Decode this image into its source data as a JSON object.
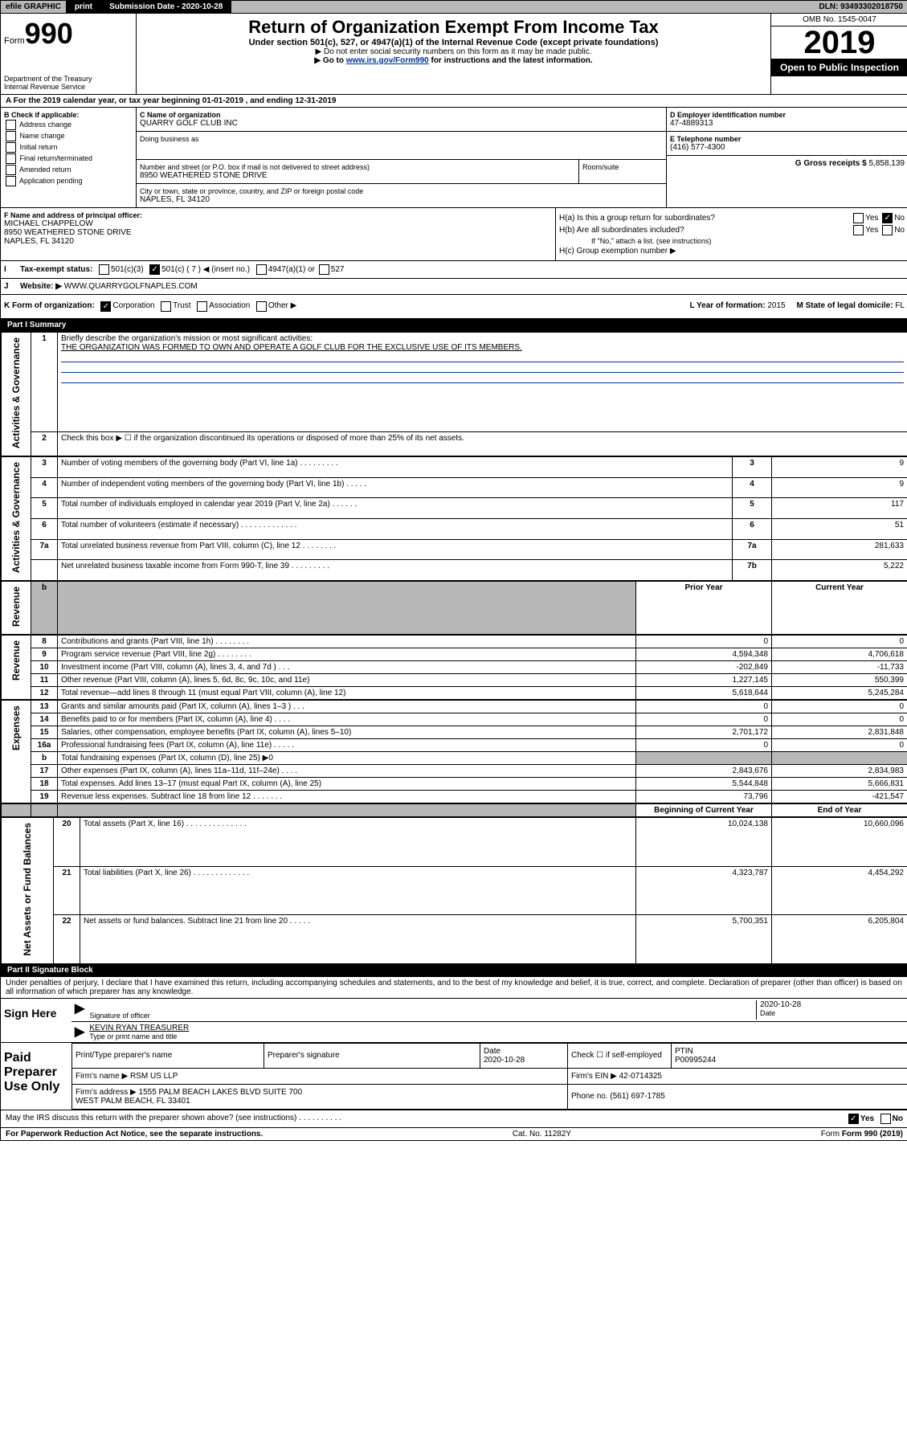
{
  "topbar": {
    "efile": "efile GRAPHIC",
    "print": "print",
    "subdate_lbl": "Submission Date - 2020-10-28",
    "dln": "DLN: 93493302018750"
  },
  "header": {
    "form_lbl": "Form",
    "form_no": "990",
    "dept": "Department of the Treasury",
    "irs": "Internal Revenue Service",
    "title": "Return of Organization Exempt From Income Tax",
    "sub1": "Under section 501(c), 527, or 4947(a)(1) of the Internal Revenue Code (except private foundations)",
    "sub2": "▶ Do not enter social security numbers on this form as it may be made public.",
    "sub3_pre": "▶ Go to ",
    "sub3_link": "www.irs.gov/Form990",
    "sub3_post": " for instructions and the latest information.",
    "omb": "OMB No. 1545-0047",
    "year": "2019",
    "open": "Open to Public Inspection"
  },
  "lineA": "For the 2019 calendar year, or tax year beginning 01-01-2019     , and ending 12-31-2019",
  "B": {
    "lbl": "B Check if applicable:",
    "items": [
      "Address change",
      "Name change",
      "Initial return",
      "Final return/terminated",
      "Amended return",
      "Application pending"
    ]
  },
  "C": {
    "name_lbl": "C Name of organization",
    "name": "QUARRY GOLF CLUB INC",
    "dba_lbl": "Doing business as",
    "addr_lbl": "Number and street (or P.O. box if mail is not delivered to street address)",
    "addr": "8950 WEATHERED STONE DRIVE",
    "room_lbl": "Room/suite",
    "city_lbl": "City or town, state or province, country, and ZIP or foreign postal code",
    "city": "NAPLES, FL  34120"
  },
  "D": {
    "lbl": "D Employer identification number",
    "val": "47-4889313"
  },
  "E": {
    "lbl": "E Telephone number",
    "val": "(416) 577-4300"
  },
  "G": {
    "lbl": "G Gross receipts $",
    "val": "5,858,139"
  },
  "F": {
    "lbl": "F  Name and address of principal officer:",
    "name": "MICHAEL CHAPPELOW",
    "addr": "8950 WEATHERED STONE DRIVE",
    "city": "NAPLES, FL  34120"
  },
  "H": {
    "a": "H(a)  Is this a group return for subordinates?",
    "b": "H(b)  Are all subordinates included?",
    "b2": "If \"No,\" attach a list. (see instructions)",
    "c": "H(c)  Group exemption number ▶"
  },
  "I": {
    "lbl": "Tax-exempt status:",
    "opts": [
      "501(c)(3)",
      "501(c) ( 7 ) ◀ (insert no.)",
      "4947(a)(1) or",
      "527"
    ]
  },
  "J": {
    "lbl": "Website: ▶",
    "val": "WWW.QUARRYGOLFNAPLES.COM"
  },
  "K": {
    "lbl": "K Form of organization:",
    "opts": [
      "Corporation",
      "Trust",
      "Association",
      "Other ▶"
    ]
  },
  "L": {
    "lbl": "L Year of formation:",
    "val": "2015"
  },
  "M": {
    "lbl": "M State of legal domicile:",
    "val": "FL"
  },
  "part1": {
    "hdr": "Part I        Summary",
    "l1": "Briefly describe the organization's mission or most significant activities:",
    "l1v": "THE ORGANIZATION WAS FORMED TO OWN AND OPERATE A GOLF CLUB FOR THE EXCLUSIVE USE OF ITS MEMBERS.",
    "l2": "Check this box ▶ ☐  if the organization discontinued its operations or disposed of more than 25% of its net assets.",
    "rows_ag": [
      {
        "n": "3",
        "d": "Number of voting members of the governing body (Part VI, line 1a)   .    .    .    .    .    .    .    .    .",
        "c": "3",
        "v": "9"
      },
      {
        "n": "4",
        "d": "Number of independent voting members of the governing body (Part VI, line 1b)   .    .    .    .    .",
        "c": "4",
        "v": "9"
      },
      {
        "n": "5",
        "d": "Total number of individuals employed in calendar year 2019 (Part V, line 2a)   .    .    .    .    .    .",
        "c": "5",
        "v": "117"
      },
      {
        "n": "6",
        "d": "Total number of volunteers (estimate if necessary)   .    .    .    .    .    .    .    .    .    .    .    .    .",
        "c": "6",
        "v": "51"
      },
      {
        "n": "7a",
        "d": "Total unrelated business revenue from Part VIII, column (C), line 12   .    .    .    .    .    .    .    .",
        "c": "7a",
        "v": "281,633"
      },
      {
        "n": "",
        "d": "Net unrelated business taxable income from Form 990-T, line 39   .    .    .    .    .    .    .    .    .",
        "c": "7b",
        "v": "5,222"
      }
    ],
    "py": "Prior Year",
    "cy": "Current Year",
    "rev": [
      {
        "n": "8",
        "d": "Contributions and grants (Part VIII, line 1h)   .    .    .    .    .    .    .    .",
        "p": "0",
        "c": "0"
      },
      {
        "n": "9",
        "d": "Program service revenue (Part VIII, line 2g)   .    .    .    .    .    .    .    .",
        "p": "4,594,348",
        "c": "4,706,618"
      },
      {
        "n": "10",
        "d": "Investment income (Part VIII, column (A), lines 3, 4, and 7d )   .    .    .",
        "p": "-202,849",
        "c": "-11,733"
      },
      {
        "n": "11",
        "d": "Other revenue (Part VIII, column (A), lines 5, 6d, 8c, 9c, 10c, and 11e)",
        "p": "1,227,145",
        "c": "550,399"
      },
      {
        "n": "12",
        "d": "Total revenue—add lines 8 through 11 (must equal Part VIII, column (A), line 12)",
        "p": "5,618,644",
        "c": "5,245,284"
      }
    ],
    "exp": [
      {
        "n": "13",
        "d": "Grants and similar amounts paid (Part IX, column (A), lines 1–3 )   .    .    .",
        "p": "0",
        "c": "0"
      },
      {
        "n": "14",
        "d": "Benefits paid to or for members (Part IX, column (A), line 4)   .    .    .    .",
        "p": "0",
        "c": "0"
      },
      {
        "n": "15",
        "d": "Salaries, other compensation, employee benefits (Part IX, column (A), lines 5–10)",
        "p": "2,701,172",
        "c": "2,831,848"
      },
      {
        "n": "16a",
        "d": "Professional fundraising fees (Part IX, column (A), line 11e)   .    .    .    .    .",
        "p": "0",
        "c": "0"
      },
      {
        "n": "b",
        "d": "Total fundraising expenses (Part IX, column (D), line 25) ▶0",
        "p": "",
        "c": "",
        "grey": true
      },
      {
        "n": "17",
        "d": "Other expenses (Part IX, column (A), lines 11a–11d, 11f–24e)   .    .    .    .",
        "p": "2,843,676",
        "c": "2,834,983"
      },
      {
        "n": "18",
        "d": "Total expenses. Add lines 13–17 (must equal Part IX, column (A), line 25)",
        "p": "5,544,848",
        "c": "5,666,831"
      },
      {
        "n": "19",
        "d": "Revenue less expenses. Subtract line 18 from line 12   .    .    .    .    .    .    .",
        "p": "73,796",
        "c": "-421,547"
      }
    ],
    "by": "Beginning of Current Year",
    "ey": "End of Year",
    "na": [
      {
        "n": "20",
        "d": "Total assets (Part X, line 16)   .    .    .    .    .    .    .    .    .    .    .    .    .    .",
        "p": "10,024,138",
        "c": "10,660,096"
      },
      {
        "n": "21",
        "d": "Total liabilities (Part X, line 26)   .    .    .    .    .    .    .    .    .    .    .    .    .",
        "p": "4,323,787",
        "c": "4,454,292"
      },
      {
        "n": "22",
        "d": "Net assets or fund balances. Subtract line 21 from line 20   .    .    .    .    .",
        "p": "5,700,351",
        "c": "6,205,804"
      }
    ],
    "side_ag": "Activities & Governance",
    "side_rev": "Revenue",
    "side_exp": "Expenses",
    "side_na": "Net Assets or Fund Balances"
  },
  "part2": {
    "hdr": "Part II       Signature Block",
    "decl": "Under penalties of perjury, I declare that I have examined this return, including accompanying schedules and statements, and to the best of my knowledge and belief, it is true, correct, and complete. Declaration of preparer (other than officer) is based on all information of which preparer has any knowledge.",
    "sign_here": "Sign Here",
    "sig_off": "Signature of officer",
    "date": "Date",
    "date_v": "2020-10-28",
    "name": "KEVIN RYAN  TREASURER",
    "name_lbl": "Type or print name and title",
    "paid": "Paid Preparer Use Only",
    "prep_name_lbl": "Print/Type preparer's name",
    "prep_sig_lbl": "Preparer's signature",
    "prep_date_lbl": "Date",
    "prep_date": "2020-10-28",
    "check_lbl": "Check ☐ if self-employed",
    "ptin_lbl": "PTIN",
    "ptin": "P00995244",
    "firm_name_lbl": "Firm's name      ▶",
    "firm_name": "RSM US LLP",
    "firm_ein_lbl": "Firm's EIN ▶",
    "firm_ein": "42-0714325",
    "firm_addr_lbl": "Firm's address ▶",
    "firm_addr": "1555 PALM BEACH LAKES BLVD SUITE 700\nWEST PALM BEACH, FL  33401",
    "phone_lbl": "Phone no.",
    "phone": "(561) 697-1785",
    "discuss": "May the IRS discuss this return with the preparer shown above? (see instructions)   .    .    .    .    .    .    .    .    .    .",
    "yes": "Yes",
    "no": "No"
  },
  "footer": {
    "pra": "For Paperwork Reduction Act Notice, see the separate instructions.",
    "cat": "Cat. No. 11282Y",
    "form": "Form 990 (2019)"
  }
}
